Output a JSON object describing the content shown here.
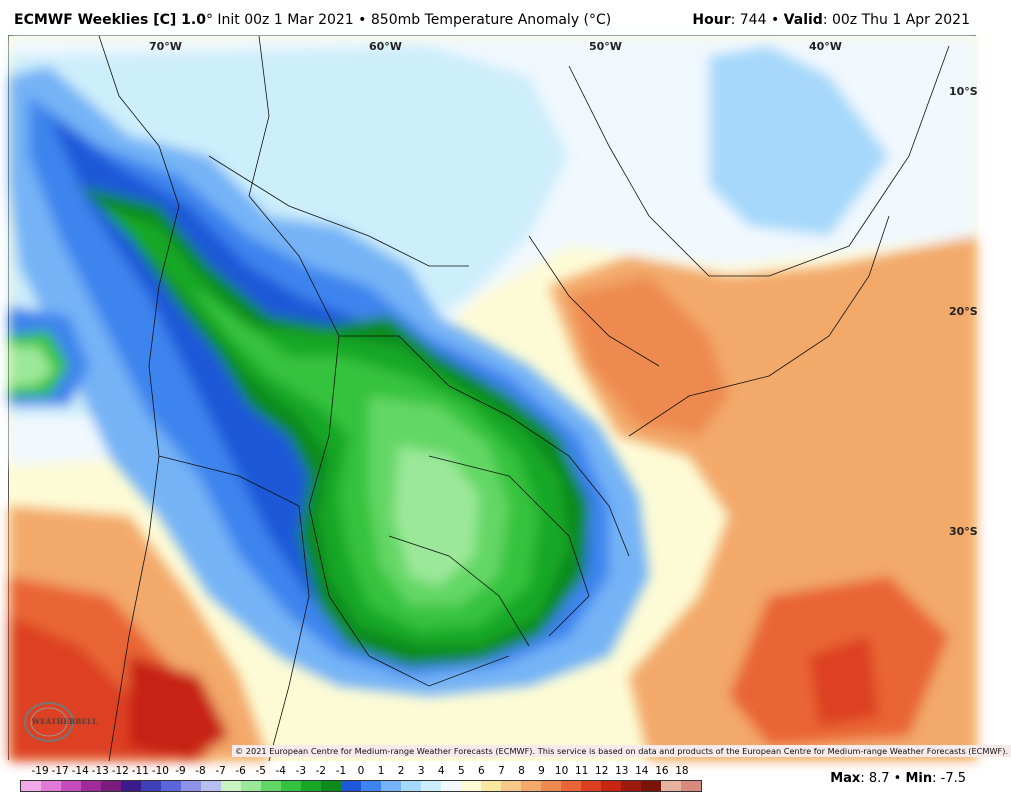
{
  "header": {
    "brand": "ECMWF Weeklies [C] 1.0",
    "degree_mark": "°",
    "init": " Init 00z 1 Mar 2021",
    "bullet": " • ",
    "product": "850mb Temperature Anomaly (°C)",
    "hour_label": "Hour",
    "hour_value": ": 744",
    "valid_label": "Valid",
    "valid_value": ": 00z Thu 1 Apr 2021"
  },
  "map": {
    "lon_labels": [
      "70°W",
      "60°W",
      "50°W",
      "40°W"
    ],
    "lat_labels": [
      "10°S",
      "20°S",
      "30°S"
    ],
    "copyright": "© 2021 European Centre for Medium-range Weather Forecasts (ECMWF). This service is based on data and products of the European Centre for Medium-range Weather Forecasts (ECMWF).",
    "logo_text": "WEATHERBELL",
    "logo_icon": "weatherbell-logo-icon"
  },
  "legend": {
    "ticks": [
      "-19",
      "-17",
      "-14",
      "-13",
      "-12",
      "-11",
      "-10",
      "-9",
      "-8",
      "-7",
      "-6",
      "-5",
      "-4",
      "-3",
      "-2",
      "-1",
      "0",
      "1",
      "2",
      "3",
      "4",
      "5",
      "6",
      "7",
      "8",
      "9",
      "10",
      "11",
      "12",
      "13",
      "14",
      "16",
      "18"
    ],
    "colors": [
      "#f2a9e8",
      "#e07ad6",
      "#c64bbd",
      "#a02c9b",
      "#7a1c7c",
      "#3b1a8c",
      "#3f3fb8",
      "#5a66d9",
      "#8e92e8",
      "#b7bff0",
      "#c8f2c0",
      "#9be89a",
      "#63d765",
      "#35c23e",
      "#19a728",
      "#0e8a1c",
      "#1f58d8",
      "#3d84ee",
      "#74b3f6",
      "#a6d8fb",
      "#cdeefb",
      "#f1f8fe",
      "#fdfbd6",
      "#f8e79f",
      "#f6c98b",
      "#f3a96b",
      "#ee8a4f",
      "#e96535",
      "#dd4020",
      "#c72412",
      "#9e1a0e",
      "#7a1409",
      "#e8b2a0",
      "#d88a7e"
    ],
    "max_label": "Max",
    "max_value": ": 8.7",
    "min_label": "Min",
    "min_value": ": -7.5"
  }
}
